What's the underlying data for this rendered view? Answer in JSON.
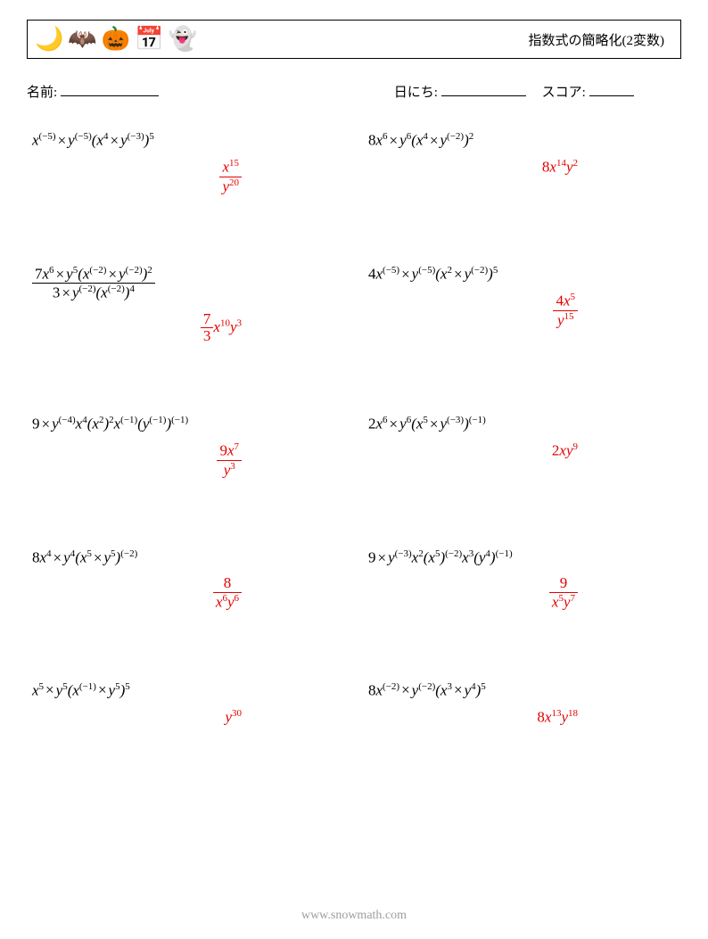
{
  "header": {
    "icons": [
      "🌙",
      "🦇",
      "🎃",
      "📅",
      "👻"
    ],
    "title": "指数式の簡略化(2変数)"
  },
  "info": {
    "name_label": "名前:",
    "date_label": "日にち:",
    "score_label": "スコア:",
    "name_underline_width": 110,
    "date_underline_width": 95,
    "score_underline_width": 50
  },
  "style": {
    "answer_color": "#e40000",
    "text_color": "#000000",
    "background": "#ffffff",
    "font_size_body": 15,
    "font_size_math": 17,
    "sup_size": 11
  },
  "problems": [
    {
      "expr": "x^{(-5)} \\times y^{(-5)} (x^{4} \\times y^{(-3)})^{5}",
      "expr_html": "x<sup>(−5)</sup><span class='times'>×</span>y<sup>(−5)</sup>(x<sup>4</sup><span class='times'>×</span>y<sup>(−3)</sup>)<sup>5</sup>",
      "ans": "x^{15} / y^{20}",
      "ans_html": "<span class='frac'><span class='num'>x<sup>15</sup></span><span class='den'>y<sup>20</sup></span></span>"
    },
    {
      "expr": "8x^{6} \\times y^{6} (x^{4} \\times y^{(-2)})^{2}",
      "expr_html": "<span class='nonitalic'>8</span>x<sup>6</sup><span class='times'>×</span>y<sup>6</sup>(x<sup>4</sup><span class='times'>×</span>y<sup>(−2)</sup>)<sup>2</sup>",
      "ans": "8x^{14} y^{2}",
      "ans_html": "<span class='nonitalic'>8</span>x<sup>14</sup>y<sup>2</sup>"
    },
    {
      "expr": "(7x^{6} \\times y^{5} (x^{(-2)} \\times y^{(-2)})^{2}) / (3 \\times y^{(-2)} (x^{(-2)})^{4})",
      "expr_html": "<span class='frac'><span class='num'><span class='nonitalic'>7</span>x<sup>6</sup><span class='times'>×</span>y<sup>5</sup>(x<sup>(−2)</sup><span class='times'>×</span>y<sup>(−2)</sup>)<sup>2</sup></span><span class='den'><span class='nonitalic'>3</span><span class='times'>×</span>y<sup>(−2)</sup>(x<sup>(−2)</sup>)<sup>4</sup></span></span>",
      "ans": "(7/3) x^{10} y^{3}",
      "ans_html": "<span class='frac'><span class='num nonitalic'>7</span><span class='den nonitalic'>3</span></span>x<sup>10</sup>y<sup>3</sup>"
    },
    {
      "expr": "4x^{(-5)} \\times y^{(-5)} (x^{2} \\times y^{(-2)})^{5}",
      "expr_html": "<span class='nonitalic'>4</span>x<sup>(−5)</sup><span class='times'>×</span>y<sup>(−5)</sup>(x<sup>2</sup><span class='times'>×</span>y<sup>(−2)</sup>)<sup>5</sup>",
      "ans": "4x^{5} / y^{15}",
      "ans_html": "<span class='frac'><span class='num'><span class='nonitalic'>4</span>x<sup>5</sup></span><span class='den'>y<sup>15</sup></span></span>"
    },
    {
      "expr": "9 \\times y^{(-4)} x^{4} (x^{2})^{2} x^{(-1)} (y^{(-1)})^{(-1)}",
      "expr_html": "<span class='nonitalic'>9</span><span class='times'>×</span>y<sup>(−4)</sup>x<sup>4</sup>(x<sup>2</sup>)<sup>2</sup>x<sup>(−1)</sup>(y<sup>(−1)</sup>)<sup>(−1)</sup>",
      "ans": "9x^{7} / y^{3}",
      "ans_html": "<span class='frac'><span class='num'><span class='nonitalic'>9</span>x<sup>7</sup></span><span class='den'>y<sup>3</sup></span></span>"
    },
    {
      "expr": "2x^{6} \\times y^{6} (x^{5} \\times y^{(-3)})^{(-1)}",
      "expr_html": "<span class='nonitalic'>2</span>x<sup>6</sup><span class='times'>×</span>y<sup>6</sup>(x<sup>5</sup><span class='times'>×</span>y<sup>(−3)</sup>)<sup>(−1)</sup>",
      "ans": "2xy^{9}",
      "ans_html": "<span class='nonitalic'>2</span>xy<sup>9</sup>"
    },
    {
      "expr": "8x^{4} \\times y^{4} (x^{5} \\times y^{5})^{(-2)}",
      "expr_html": "<span class='nonitalic'>8</span>x<sup>4</sup><span class='times'>×</span>y<sup>4</sup>(x<sup>5</sup><span class='times'>×</span>y<sup>5</sup>)<sup>(−2)</sup>",
      "ans": "8 / (x^{6} y^{6})",
      "ans_html": "<span class='frac'><span class='num nonitalic'>8</span><span class='den'>x<sup>6</sup>y<sup>6</sup></span></span>"
    },
    {
      "expr": "9 \\times y^{(-3)} x^{2} (x^{5})^{(-2)} x^{3} (y^{4})^{(-1)}",
      "expr_html": "<span class='nonitalic'>9</span><span class='times'>×</span>y<sup>(−3)</sup>x<sup>2</sup>(x<sup>5</sup>)<sup>(−2)</sup>x<sup>3</sup>(y<sup>4</sup>)<sup>(−1)</sup>",
      "ans": "9 / (x^{5} y^{7})",
      "ans_html": "<span class='frac'><span class='num nonitalic'>9</span><span class='den'>x<sup>5</sup>y<sup>7</sup></span></span>"
    },
    {
      "expr": "x^{5} \\times y^{5} (x^{(-1)} \\times y^{5})^{5}",
      "expr_html": "x<sup>5</sup><span class='times'>×</span>y<sup>5</sup>(x<sup>(−1)</sup><span class='times'>×</span>y<sup>5</sup>)<sup>5</sup>",
      "ans": "y^{30}",
      "ans_html": "y<sup>30</sup>"
    },
    {
      "expr": "8x^{(-2)} \\times y^{(-2)} (x^{3} \\times y^{4})^{5}",
      "expr_html": "<span class='nonitalic'>8</span>x<sup>(−2)</sup><span class='times'>×</span>y<sup>(−2)</sup>(x<sup>3</sup><span class='times'>×</span>y<sup>4</sup>)<sup>5</sup>",
      "ans": "8x^{13} y^{18}",
      "ans_html": "<span class='nonitalic'>8</span>x<sup>13</sup>y<sup>18</sup>"
    }
  ],
  "footer": "www.snowmath.com"
}
